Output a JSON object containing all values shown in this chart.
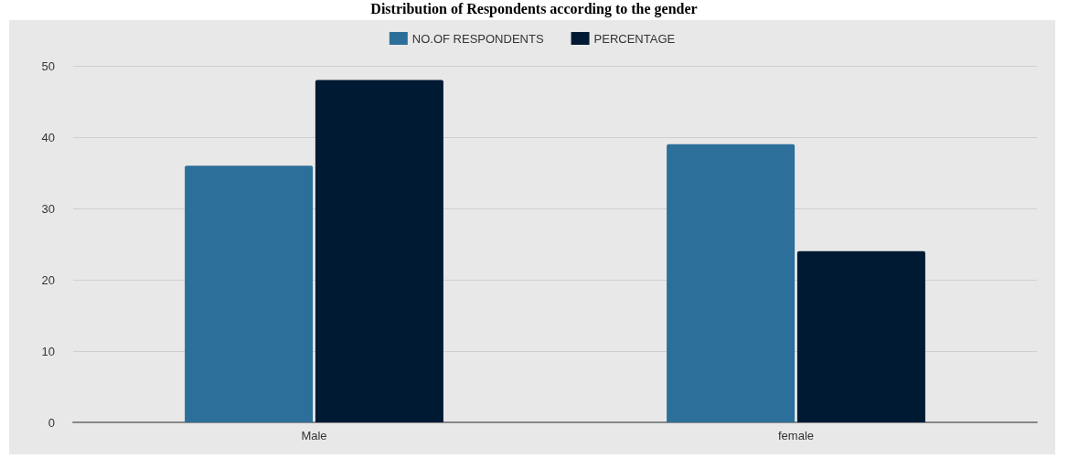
{
  "chart_data": {
    "type": "bar",
    "title": "Distribution of Respondents according to the gender",
    "categories": [
      "Male",
      "female"
    ],
    "series": [
      {
        "name": "NO.OF RESPONDENTS",
        "color": "#2c6f9a",
        "values": [
          36,
          39
        ]
      },
      {
        "name": "PERCENTAGE",
        "color": "#011a33",
        "values": [
          48,
          24
        ]
      }
    ],
    "ylim": [
      0,
      50
    ],
    "yticks": [
      0,
      10,
      20,
      30,
      40,
      50
    ],
    "grid": "y",
    "legend": "top"
  }
}
